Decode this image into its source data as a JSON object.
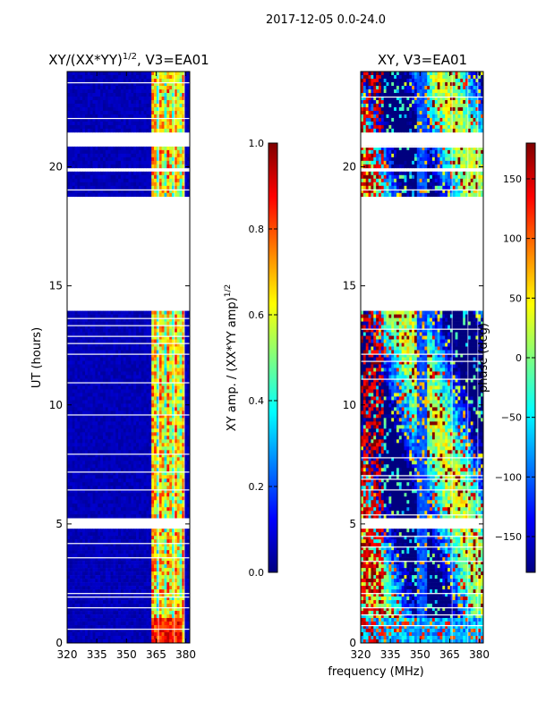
{
  "figure": {
    "suptitle": "2017-12-05 0.0-24.0",
    "xlabel": "frequency (MHz)"
  },
  "colors": {
    "jet": [
      "#00007f",
      "#0000ff",
      "#007fff",
      "#00ffff",
      "#7fff7f",
      "#ffff00",
      "#ff7f00",
      "#ff0000",
      "#7f0000"
    ]
  },
  "chart_data": [
    {
      "type": "heatmap",
      "title_main": "XY/(XX*YY)",
      "title_sup": "1/2",
      "title_tail": ", V3=EA01",
      "ylabel": "UT (hours)",
      "xlim": [
        320,
        382
      ],
      "ylim": [
        0,
        24
      ],
      "xticks": [
        320,
        335,
        350,
        365,
        380
      ],
      "yticks": [
        0,
        5,
        10,
        15,
        20
      ],
      "colorbar": {
        "label_main": "XY amp. / (XX*YY amp)",
        "label_sup": "1/2",
        "range": [
          0.0,
          1.0
        ],
        "ticks": [
          "0.0",
          "0.2",
          "0.4",
          "0.6",
          "0.8",
          "1.0"
        ]
      }
    },
    {
      "type": "heatmap",
      "title": "XY, V3=EA01",
      "xlim": [
        320,
        382
      ],
      "ylim": [
        0,
        24
      ],
      "xticks": [
        320,
        335,
        350,
        365,
        380
      ],
      "yticks": [
        0,
        5,
        10,
        15,
        20
      ],
      "colorbar": {
        "label": "phase (deg)",
        "range": [
          -180,
          180
        ],
        "ticks": [
          "−150",
          "−100",
          "−50",
          "0",
          "50",
          "100",
          "150"
        ]
      }
    }
  ]
}
